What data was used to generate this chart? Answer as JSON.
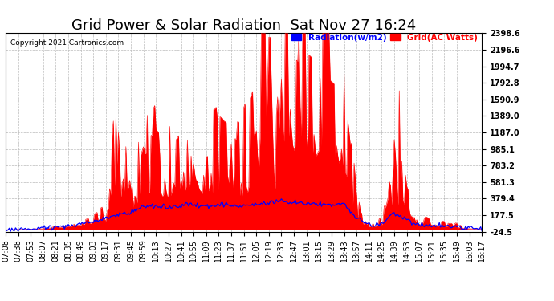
{
  "title": "Grid Power & Solar Radiation  Sat Nov 27 16:24",
  "copyright": "Copyright 2021 Cartronics.com",
  "legend_radiation": "Radiation(w/m2)",
  "legend_grid": "Grid(AC Watts)",
  "legend_radiation_color": "blue",
  "legend_grid_color": "red",
  "y_ticks": [
    2398.6,
    2196.6,
    1994.7,
    1792.8,
    1590.9,
    1389.0,
    1187.0,
    985.1,
    783.2,
    581.3,
    379.4,
    177.5,
    -24.5
  ],
  "ylim_min": -24.5,
  "ylim_max": 2398.6,
  "x_labels": [
    "07:08",
    "07:38",
    "07:53",
    "08:07",
    "08:21",
    "08:35",
    "08:49",
    "09:03",
    "09:17",
    "09:31",
    "09:45",
    "09:59",
    "10:13",
    "10:27",
    "10:41",
    "10:55",
    "11:09",
    "11:23",
    "11:37",
    "11:51",
    "12:05",
    "12:19",
    "12:33",
    "12:47",
    "13:01",
    "13:15",
    "13:29",
    "13:43",
    "13:57",
    "14:11",
    "14:25",
    "14:39",
    "14:53",
    "15:07",
    "15:21",
    "15:35",
    "15:49",
    "16:03",
    "16:17"
  ],
  "background_color": "#ffffff",
  "grid_color": "#aaaaaa",
  "plot_bg_color": "#ffffff",
  "title_fontsize": 13,
  "tick_fontsize": 7
}
